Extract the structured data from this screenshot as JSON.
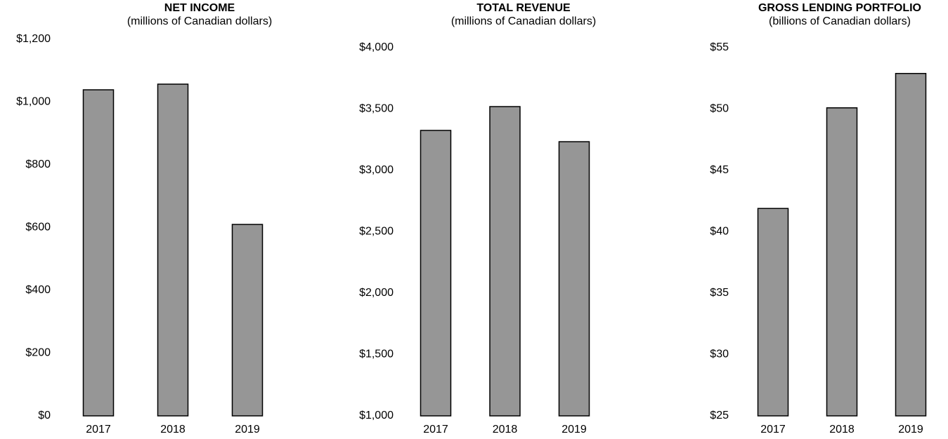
{
  "chart_data": [
    {
      "type": "bar",
      "title": "NET INCOME",
      "subtitle": "(millions of Canadian dollars)",
      "categories": [
        "2017",
        "2018",
        "2019"
      ],
      "values": [
        1039,
        1057,
        610
      ],
      "color": "#969696",
      "ylim": [
        0,
        1200
      ],
      "yticks": [
        {
          "value": 0,
          "label": "$0"
        },
        {
          "value": 200,
          "label": "$200"
        },
        {
          "value": 400,
          "label": "$400"
        },
        {
          "value": 600,
          "label": "$600"
        },
        {
          "value": 800,
          "label": "$800"
        },
        {
          "value": 1000,
          "label": "$1,000"
        },
        {
          "value": 1200,
          "label": "$1,200"
        }
      ],
      "grid": false
    },
    {
      "type": "bar",
      "title": "TOTAL REVENUE",
      "subtitle": "(millions of Canadian dollars)",
      "categories": [
        "2017",
        "2018",
        "2019"
      ],
      "values": [
        3326,
        3520,
        3234
      ],
      "color": "#969696",
      "ylim": [
        1000,
        4000
      ],
      "yticks": [
        {
          "value": 1000,
          "label": "$1,000"
        },
        {
          "value": 1500,
          "label": "$1,500"
        },
        {
          "value": 2000,
          "label": "$2,000"
        },
        {
          "value": 2500,
          "label": "$2,500"
        },
        {
          "value": 3000,
          "label": "$3,000"
        },
        {
          "value": 3500,
          "label": "$3,500"
        },
        {
          "value": 4000,
          "label": "$4,000"
        }
      ],
      "grid": false
    },
    {
      "type": "bar",
      "title": "GROSS LENDING PORTFOLIO",
      "subtitle": "(billions of Canadian dollars)",
      "categories": [
        "2017",
        "2018",
        "2019"
      ],
      "values": [
        41.9,
        50.1,
        52.9
      ],
      "color": "#969696",
      "ylim": [
        25,
        55
      ],
      "yticks": [
        {
          "value": 25,
          "label": "$25"
        },
        {
          "value": 30,
          "label": "$30"
        },
        {
          "value": 35,
          "label": "$35"
        },
        {
          "value": 40,
          "label": "$40"
        },
        {
          "value": 45,
          "label": "$45"
        },
        {
          "value": 50,
          "label": "$50"
        },
        {
          "value": 55,
          "label": "$55"
        }
      ],
      "grid": false
    }
  ]
}
